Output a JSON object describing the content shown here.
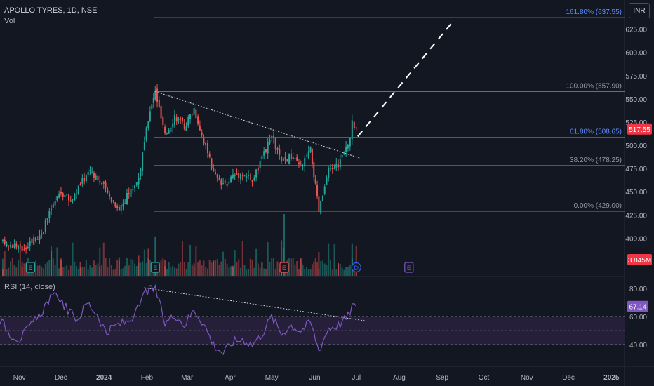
{
  "header": {
    "title": "APOLLO TYRES, 1D, NSE",
    "volume_label": "Vol"
  },
  "currency_button": "INR",
  "rsi_label": "RSI (14, close)",
  "colors": {
    "background": "#131722",
    "up": "#26a69a",
    "down": "#ef5350",
    "fib_blue": "#2962ff",
    "fib_gray": "#787b86",
    "rsi_line": "#7e57c2",
    "rsi_band": "#2a2340",
    "price_badge": "#f23645",
    "rsi_badge": "#7e57c2"
  },
  "chart_data": [
    {
      "type": "candlestick",
      "title": "APOLLO TYRES, 1D, NSE",
      "y_axis_ticks": [
        "400.00",
        "425.00",
        "450.00",
        "475.00",
        "500.00",
        "525.00",
        "550.00",
        "575.00",
        "600.00",
        "625.00"
      ],
      "ylim": [
        385,
        642
      ],
      "x_axis_ticks": [
        "Nov",
        "Dec",
        "2024",
        "Feb",
        "Mar",
        "Apr",
        "May",
        "Jun",
        "Jul",
        "Aug",
        "Sep",
        "Oct",
        "Nov",
        "Dec",
        "2025"
      ],
      "last_price": "517.55",
      "volume_badge": "3.845M",
      "event_markers": [
        {
          "label": "E",
          "date": "2023-11-09",
          "kind": "earnings"
        },
        {
          "label": "E",
          "date": "2024-02-07",
          "kind": "earnings"
        },
        {
          "label": "E",
          "date": "2024-05-10",
          "kind": "earnings"
        },
        {
          "label": "D",
          "date": "2024-07-01",
          "kind": "dividend"
        },
        {
          "label": "E",
          "date": "2024-08-08",
          "kind": "earnings"
        }
      ],
      "fibonacci": [
        {
          "label": "161.80% (637.55)",
          "price": 637.55,
          "color": "blue"
        },
        {
          "label": "100.00% (557.90)",
          "price": 557.9,
          "color": "gray"
        },
        {
          "label": "61.80% (508.65)",
          "price": 508.65,
          "color": "blue"
        },
        {
          "label": "38.20% (478.25)",
          "price": 478.25,
          "color": "gray"
        },
        {
          "label": "0.00% (429.00)",
          "price": 429.0,
          "color": "gray"
        }
      ],
      "trendline": {
        "from": [
          "2024-02-07",
          557.9
        ],
        "to": [
          "2024-07-04",
          486.0
        ]
      },
      "projection": {
        "from": [
          "2024-06-28",
          508.0
        ],
        "to": [
          "2024-09-09",
          637.55
        ]
      },
      "price_series_approx": [
        [
          "2023-10-20",
          395
        ],
        [
          "2023-10-27",
          393
        ],
        [
          "2023-11-03",
          388
        ],
        [
          "2023-11-10",
          398
        ],
        [
          "2023-11-17",
          405
        ],
        [
          "2023-11-24",
          432
        ],
        [
          "2023-12-01",
          450
        ],
        [
          "2023-12-08",
          440
        ],
        [
          "2023-12-15",
          458
        ],
        [
          "2023-12-22",
          475
        ],
        [
          "2023-12-29",
          462
        ],
        [
          "2024-01-05",
          445
        ],
        [
          "2024-01-12",
          432
        ],
        [
          "2024-01-19",
          448
        ],
        [
          "2024-01-26",
          465
        ],
        [
          "2024-02-02",
          528
        ],
        [
          "2024-02-07",
          557.9
        ],
        [
          "2024-02-14",
          510
        ],
        [
          "2024-02-21",
          532
        ],
        [
          "2024-02-28",
          520
        ],
        [
          "2024-03-06",
          540
        ],
        [
          "2024-03-13",
          505
        ],
        [
          "2024-03-20",
          470
        ],
        [
          "2024-03-27",
          455
        ],
        [
          "2024-04-03",
          468
        ],
        [
          "2024-04-10",
          470
        ],
        [
          "2024-04-17",
          462
        ],
        [
          "2024-04-24",
          485
        ],
        [
          "2024-05-01",
          510
        ],
        [
          "2024-05-08",
          482
        ],
        [
          "2024-05-15",
          488
        ],
        [
          "2024-05-22",
          476
        ],
        [
          "2024-05-29",
          495
        ],
        [
          "2024-06-04",
          429
        ],
        [
          "2024-06-11",
          472
        ],
        [
          "2024-06-18",
          480
        ],
        [
          "2024-06-25",
          500
        ],
        [
          "2024-06-28",
          523
        ],
        [
          "2024-07-01",
          517.55
        ]
      ],
      "volume_series_approx_millions": [
        [
          "2023-10-20",
          0.9
        ],
        [
          "2023-11-03",
          1.1
        ],
        [
          "2023-11-10",
          1.8
        ],
        [
          "2023-11-24",
          3.2
        ],
        [
          "2023-12-01",
          2.1
        ],
        [
          "2023-12-15",
          1.8
        ],
        [
          "2023-12-29",
          1.2
        ],
        [
          "2024-01-12",
          2.4
        ],
        [
          "2024-01-26",
          2.6
        ],
        [
          "2024-02-02",
          3.5
        ],
        [
          "2024-02-07",
          5.1
        ],
        [
          "2024-02-14",
          2.0
        ],
        [
          "2024-03-06",
          1.6
        ],
        [
          "2024-03-20",
          1.9
        ],
        [
          "2024-04-03",
          1.3
        ],
        [
          "2024-04-24",
          1.7
        ],
        [
          "2024-05-08",
          4.6
        ],
        [
          "2024-05-10",
          8.0
        ],
        [
          "2024-05-22",
          2.3
        ],
        [
          "2024-06-04",
          3.1
        ],
        [
          "2024-06-18",
          1.6
        ],
        [
          "2024-06-28",
          4.2
        ],
        [
          "2024-07-01",
          3.845
        ]
      ]
    },
    {
      "type": "line",
      "title": "RSI (14, close)",
      "y_axis_ticks": [
        "40.00",
        "60.00",
        "80.00"
      ],
      "ylim": [
        20,
        84
      ],
      "bands": [
        30,
        50,
        70
      ],
      "last_value": "67.14",
      "trendline": {
        "from": [
          "2024-01-30",
          80.5
        ],
        "to": [
          "2024-07-07",
          57.0
        ]
      },
      "series": [
        {
          "name": "RSI",
          "points": [
            [
              "2023-10-18",
              58
            ],
            [
              "2023-10-25",
              48
            ],
            [
              "2023-11-01",
              44
            ],
            [
              "2023-11-08",
              52
            ],
            [
              "2023-11-15",
              60
            ],
            [
              "2023-11-22",
              72
            ],
            [
              "2023-11-29",
              75
            ],
            [
              "2023-12-06",
              64
            ],
            [
              "2023-12-13",
              58
            ],
            [
              "2023-12-20",
              70
            ],
            [
              "2023-12-27",
              62
            ],
            [
              "2024-01-03",
              48
            ],
            [
              "2024-01-10",
              54
            ],
            [
              "2024-01-17",
              56
            ],
            [
              "2024-01-24",
              62
            ],
            [
              "2024-01-31",
              78
            ],
            [
              "2024-02-07",
              80
            ],
            [
              "2024-02-14",
              55
            ],
            [
              "2024-02-21",
              62
            ],
            [
              "2024-02-28",
              54
            ],
            [
              "2024-03-06",
              65
            ],
            [
              "2024-03-13",
              55
            ],
            [
              "2024-03-20",
              40
            ],
            [
              "2024-03-27",
              34
            ],
            [
              "2024-04-03",
              42
            ],
            [
              "2024-04-10",
              44
            ],
            [
              "2024-04-17",
              40
            ],
            [
              "2024-04-24",
              48
            ],
            [
              "2024-05-01",
              60
            ],
            [
              "2024-05-08",
              48
            ],
            [
              "2024-05-15",
              54
            ],
            [
              "2024-05-22",
              50
            ],
            [
              "2024-05-29",
              56
            ],
            [
              "2024-06-04",
              36
            ],
            [
              "2024-06-11",
              52
            ],
            [
              "2024-06-18",
              54
            ],
            [
              "2024-06-25",
              60
            ],
            [
              "2024-06-28",
              68
            ],
            [
              "2024-07-01",
              67.14
            ]
          ]
        }
      ]
    }
  ]
}
